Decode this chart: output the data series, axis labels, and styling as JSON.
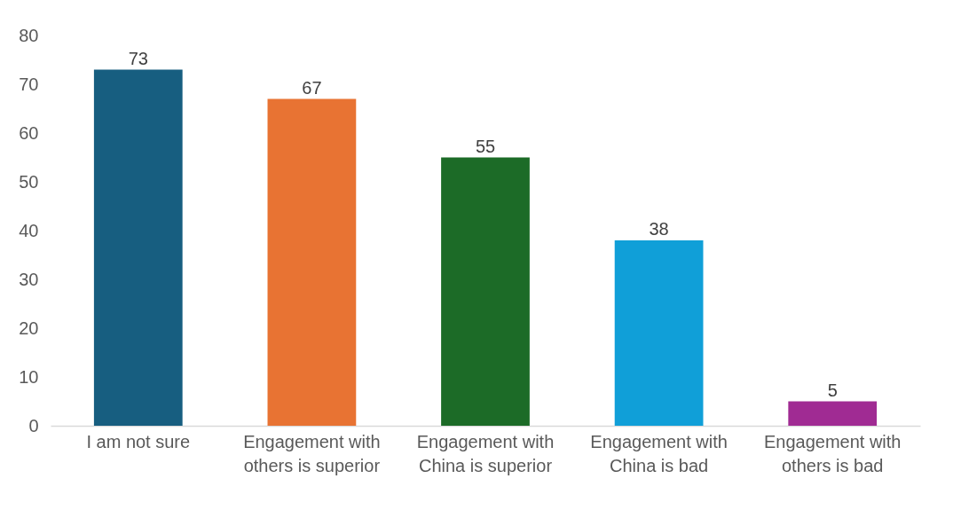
{
  "chart_data": {
    "type": "bar",
    "categories": [
      "I am not sure",
      "Engagement with others is superior",
      "Engagement with China is superior",
      "Engagement with China is bad",
      "Engagement with others is bad"
    ],
    "values": [
      73,
      67,
      55,
      38,
      5
    ],
    "colors": [
      "#175e80",
      "#e87333",
      "#1c6b27",
      "#109fd8",
      "#a02b93"
    ],
    "ylim": [
      0,
      80
    ],
    "yticks": [
      0,
      10,
      20,
      30,
      40,
      50,
      60,
      70,
      80
    ],
    "grid": false,
    "data_labels": true
  }
}
